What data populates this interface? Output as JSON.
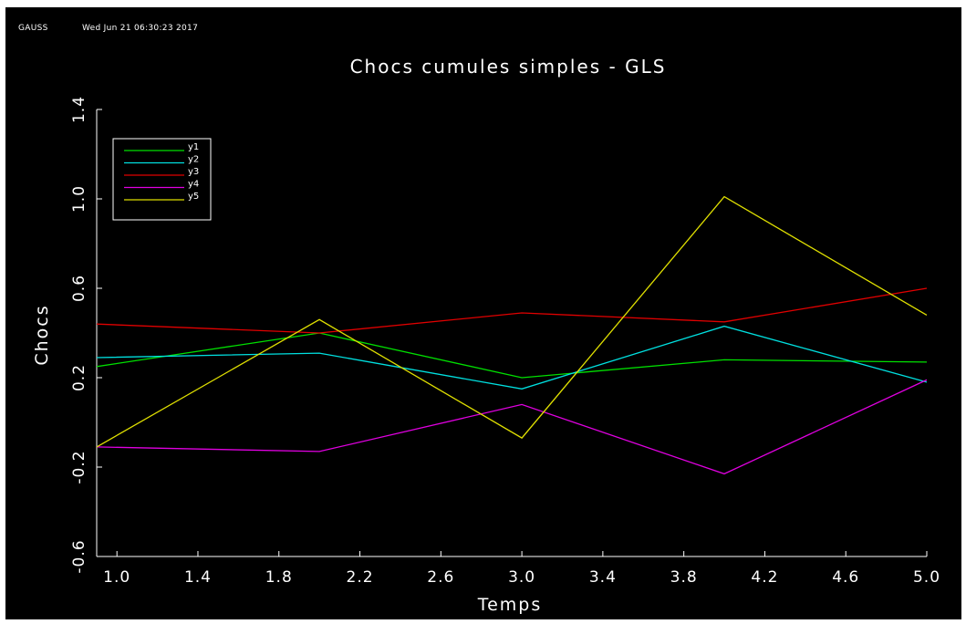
{
  "header": {
    "app_name": "GAUSS",
    "timestamp": "Wed Jun 21 06:30:23 2017"
  },
  "colors": {
    "background": "#000000",
    "foreground": "#ffffff"
  },
  "chart_data": {
    "type": "line",
    "title": "Chocs cumules simples - GLS",
    "xlabel": "Temps",
    "ylabel": "Chocs",
    "xlim": [
      0.9,
      5.0
    ],
    "ylim": [
      -0.6,
      1.4
    ],
    "x_ticks": [
      "1.0",
      "1.4",
      "1.8",
      "2.2",
      "2.6",
      "3.0",
      "3.4",
      "3.8",
      "4.2",
      "4.6",
      "5.0"
    ],
    "y_ticks": [
      "-0.6",
      "-0.2",
      "0.2",
      "0.6",
      "1.0",
      "1.4"
    ],
    "grid": false,
    "legend_position": "top-left",
    "x": [
      0.9,
      2.0,
      3.0,
      4.0,
      5.0
    ],
    "series": [
      {
        "name": "y1",
        "color": "#00e000",
        "values": [
          0.25,
          0.4,
          0.2,
          0.28,
          0.27
        ]
      },
      {
        "name": "y2",
        "color": "#00e0e0",
        "values": [
          0.29,
          0.31,
          0.15,
          0.43,
          0.18
        ]
      },
      {
        "name": "y3",
        "color": "#e00000",
        "values": [
          0.44,
          0.4,
          0.49,
          0.45,
          0.6
        ]
      },
      {
        "name": "y4",
        "color": "#e000e0",
        "values": [
          -0.11,
          -0.13,
          0.08,
          -0.23,
          0.19
        ]
      },
      {
        "name": "y5",
        "color": "#e0e000",
        "values": [
          -0.11,
          0.46,
          -0.07,
          1.01,
          0.48
        ]
      }
    ]
  }
}
